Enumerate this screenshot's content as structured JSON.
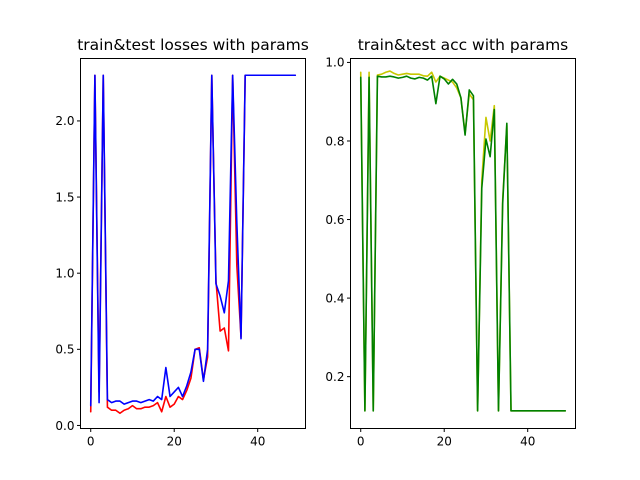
{
  "chart_data": [
    {
      "type": "line",
      "title": "train&test losses with params",
      "xlabel": "",
      "ylabel": "",
      "xlim": [
        -2.45,
        51.45
      ],
      "ylim": [
        -0.02,
        2.41
      ],
      "xticks": [
        0,
        20,
        40
      ],
      "yticks": [
        0.0,
        0.5,
        1.0,
        1.5,
        2.0
      ],
      "xtick_labels": [
        "0",
        "20",
        "40"
      ],
      "ytick_labels": [
        "0.0",
        "0.5",
        "1.0",
        "1.5",
        "2.0"
      ],
      "grid": false,
      "legend": "none",
      "series": [
        {
          "color": "#ff0000",
          "x": [
            0,
            1,
            2,
            3,
            4,
            5,
            6,
            7,
            8,
            9,
            10,
            11,
            12,
            13,
            14,
            15,
            16,
            17,
            18,
            19,
            20,
            21,
            22,
            23,
            24,
            25,
            26,
            27,
            28,
            29,
            30,
            31,
            32,
            33,
            34,
            35,
            36,
            37,
            38,
            39,
            40,
            41,
            42,
            43,
            44,
            45,
            46,
            47,
            48,
            49
          ],
          "y": [
            0.09,
            2.3,
            0.22,
            2.3,
            0.12,
            0.1,
            0.1,
            0.08,
            0.1,
            0.11,
            0.13,
            0.11,
            0.11,
            0.12,
            0.12,
            0.13,
            0.15,
            0.09,
            0.19,
            0.12,
            0.14,
            0.19,
            0.17,
            0.23,
            0.31,
            0.5,
            0.51,
            0.3,
            0.45,
            2.3,
            0.95,
            0.62,
            0.64,
            0.49,
            2.3,
            1.05,
            0.58,
            2.3,
            2.3,
            2.3,
            2.3,
            2.3,
            2.3,
            2.3,
            2.3,
            2.3,
            2.3,
            2.3,
            2.3,
            2.3
          ]
        },
        {
          "color": "#0000ff",
          "x": [
            0,
            1,
            2,
            3,
            4,
            5,
            6,
            7,
            8,
            9,
            10,
            11,
            12,
            13,
            14,
            15,
            16,
            17,
            18,
            19,
            20,
            21,
            22,
            23,
            24,
            25,
            26,
            27,
            28,
            29,
            30,
            31,
            32,
            33,
            34,
            35,
            36,
            37,
            38,
            39,
            40,
            41,
            42,
            43,
            44,
            45,
            46,
            47,
            48,
            49
          ],
          "y": [
            0.13,
            2.3,
            0.15,
            2.3,
            0.17,
            0.15,
            0.16,
            0.16,
            0.14,
            0.15,
            0.16,
            0.16,
            0.15,
            0.16,
            0.17,
            0.16,
            0.19,
            0.17,
            0.38,
            0.19,
            0.22,
            0.25,
            0.19,
            0.26,
            0.35,
            0.5,
            0.5,
            0.29,
            0.5,
            2.3,
            0.93,
            0.85,
            0.74,
            0.95,
            2.3,
            1.33,
            0.57,
            2.3,
            2.3,
            2.3,
            2.3,
            2.3,
            2.3,
            2.3,
            2.3,
            2.3,
            2.3,
            2.3,
            2.3,
            2.3
          ]
        }
      ]
    },
    {
      "type": "line",
      "title": "train&test acc with params",
      "xlabel": "",
      "ylabel": "",
      "xlim": [
        -2.45,
        51.45
      ],
      "ylim": [
        0.068,
        1.01
      ],
      "xticks": [
        0,
        20,
        40
      ],
      "yticks": [
        0.2,
        0.4,
        0.6,
        0.8,
        1.0
      ],
      "xtick_labels": [
        "0",
        "20",
        "40"
      ],
      "ytick_labels": [
        "0.2",
        "0.4",
        "0.6",
        "0.8",
        "1.0"
      ],
      "grid": false,
      "legend": "none",
      "series": [
        {
          "color": "#c8c800",
          "x": [
            0,
            1,
            2,
            3,
            4,
            5,
            6,
            7,
            8,
            9,
            10,
            11,
            12,
            13,
            14,
            15,
            16,
            17,
            18,
            19,
            20,
            21,
            22,
            23,
            24,
            25,
            26,
            27,
            28,
            29,
            30,
            31,
            32,
            33,
            34,
            35,
            36,
            37,
            38,
            39,
            40,
            41,
            42,
            43,
            44,
            45,
            46,
            47,
            48,
            49
          ],
          "y": [
            0.975,
            0.113,
            0.975,
            0.113,
            0.968,
            0.97,
            0.975,
            0.978,
            0.972,
            0.968,
            0.97,
            0.972,
            0.97,
            0.97,
            0.97,
            0.966,
            0.965,
            0.975,
            0.95,
            0.965,
            0.96,
            0.955,
            0.95,
            0.935,
            0.91,
            0.82,
            0.92,
            0.905,
            0.113,
            0.7,
            0.86,
            0.8,
            0.89,
            0.113,
            0.65,
            0.84,
            0.113,
            0.113,
            0.113,
            0.113,
            0.113,
            0.113,
            0.113,
            0.113,
            0.113,
            0.113,
            0.113,
            0.113,
            0.113,
            0.113
          ]
        },
        {
          "color": "#008000",
          "x": [
            0,
            1,
            2,
            3,
            4,
            5,
            6,
            7,
            8,
            9,
            10,
            11,
            12,
            13,
            14,
            15,
            16,
            17,
            18,
            19,
            20,
            21,
            22,
            23,
            24,
            25,
            26,
            27,
            28,
            29,
            30,
            31,
            32,
            33,
            34,
            35,
            36,
            37,
            38,
            39,
            40,
            41,
            42,
            43,
            44,
            45,
            46,
            47,
            48,
            49
          ],
          "y": [
            0.962,
            0.113,
            0.962,
            0.113,
            0.965,
            0.963,
            0.963,
            0.965,
            0.963,
            0.96,
            0.962,
            0.965,
            0.96,
            0.958,
            0.962,
            0.96,
            0.955,
            0.965,
            0.895,
            0.965,
            0.958,
            0.945,
            0.957,
            0.945,
            0.91,
            0.815,
            0.93,
            0.915,
            0.113,
            0.68,
            0.805,
            0.76,
            0.88,
            0.113,
            0.64,
            0.845,
            0.113,
            0.113,
            0.113,
            0.113,
            0.113,
            0.113,
            0.113,
            0.113,
            0.113,
            0.113,
            0.113,
            0.113,
            0.113,
            0.113
          ]
        }
      ]
    }
  ]
}
